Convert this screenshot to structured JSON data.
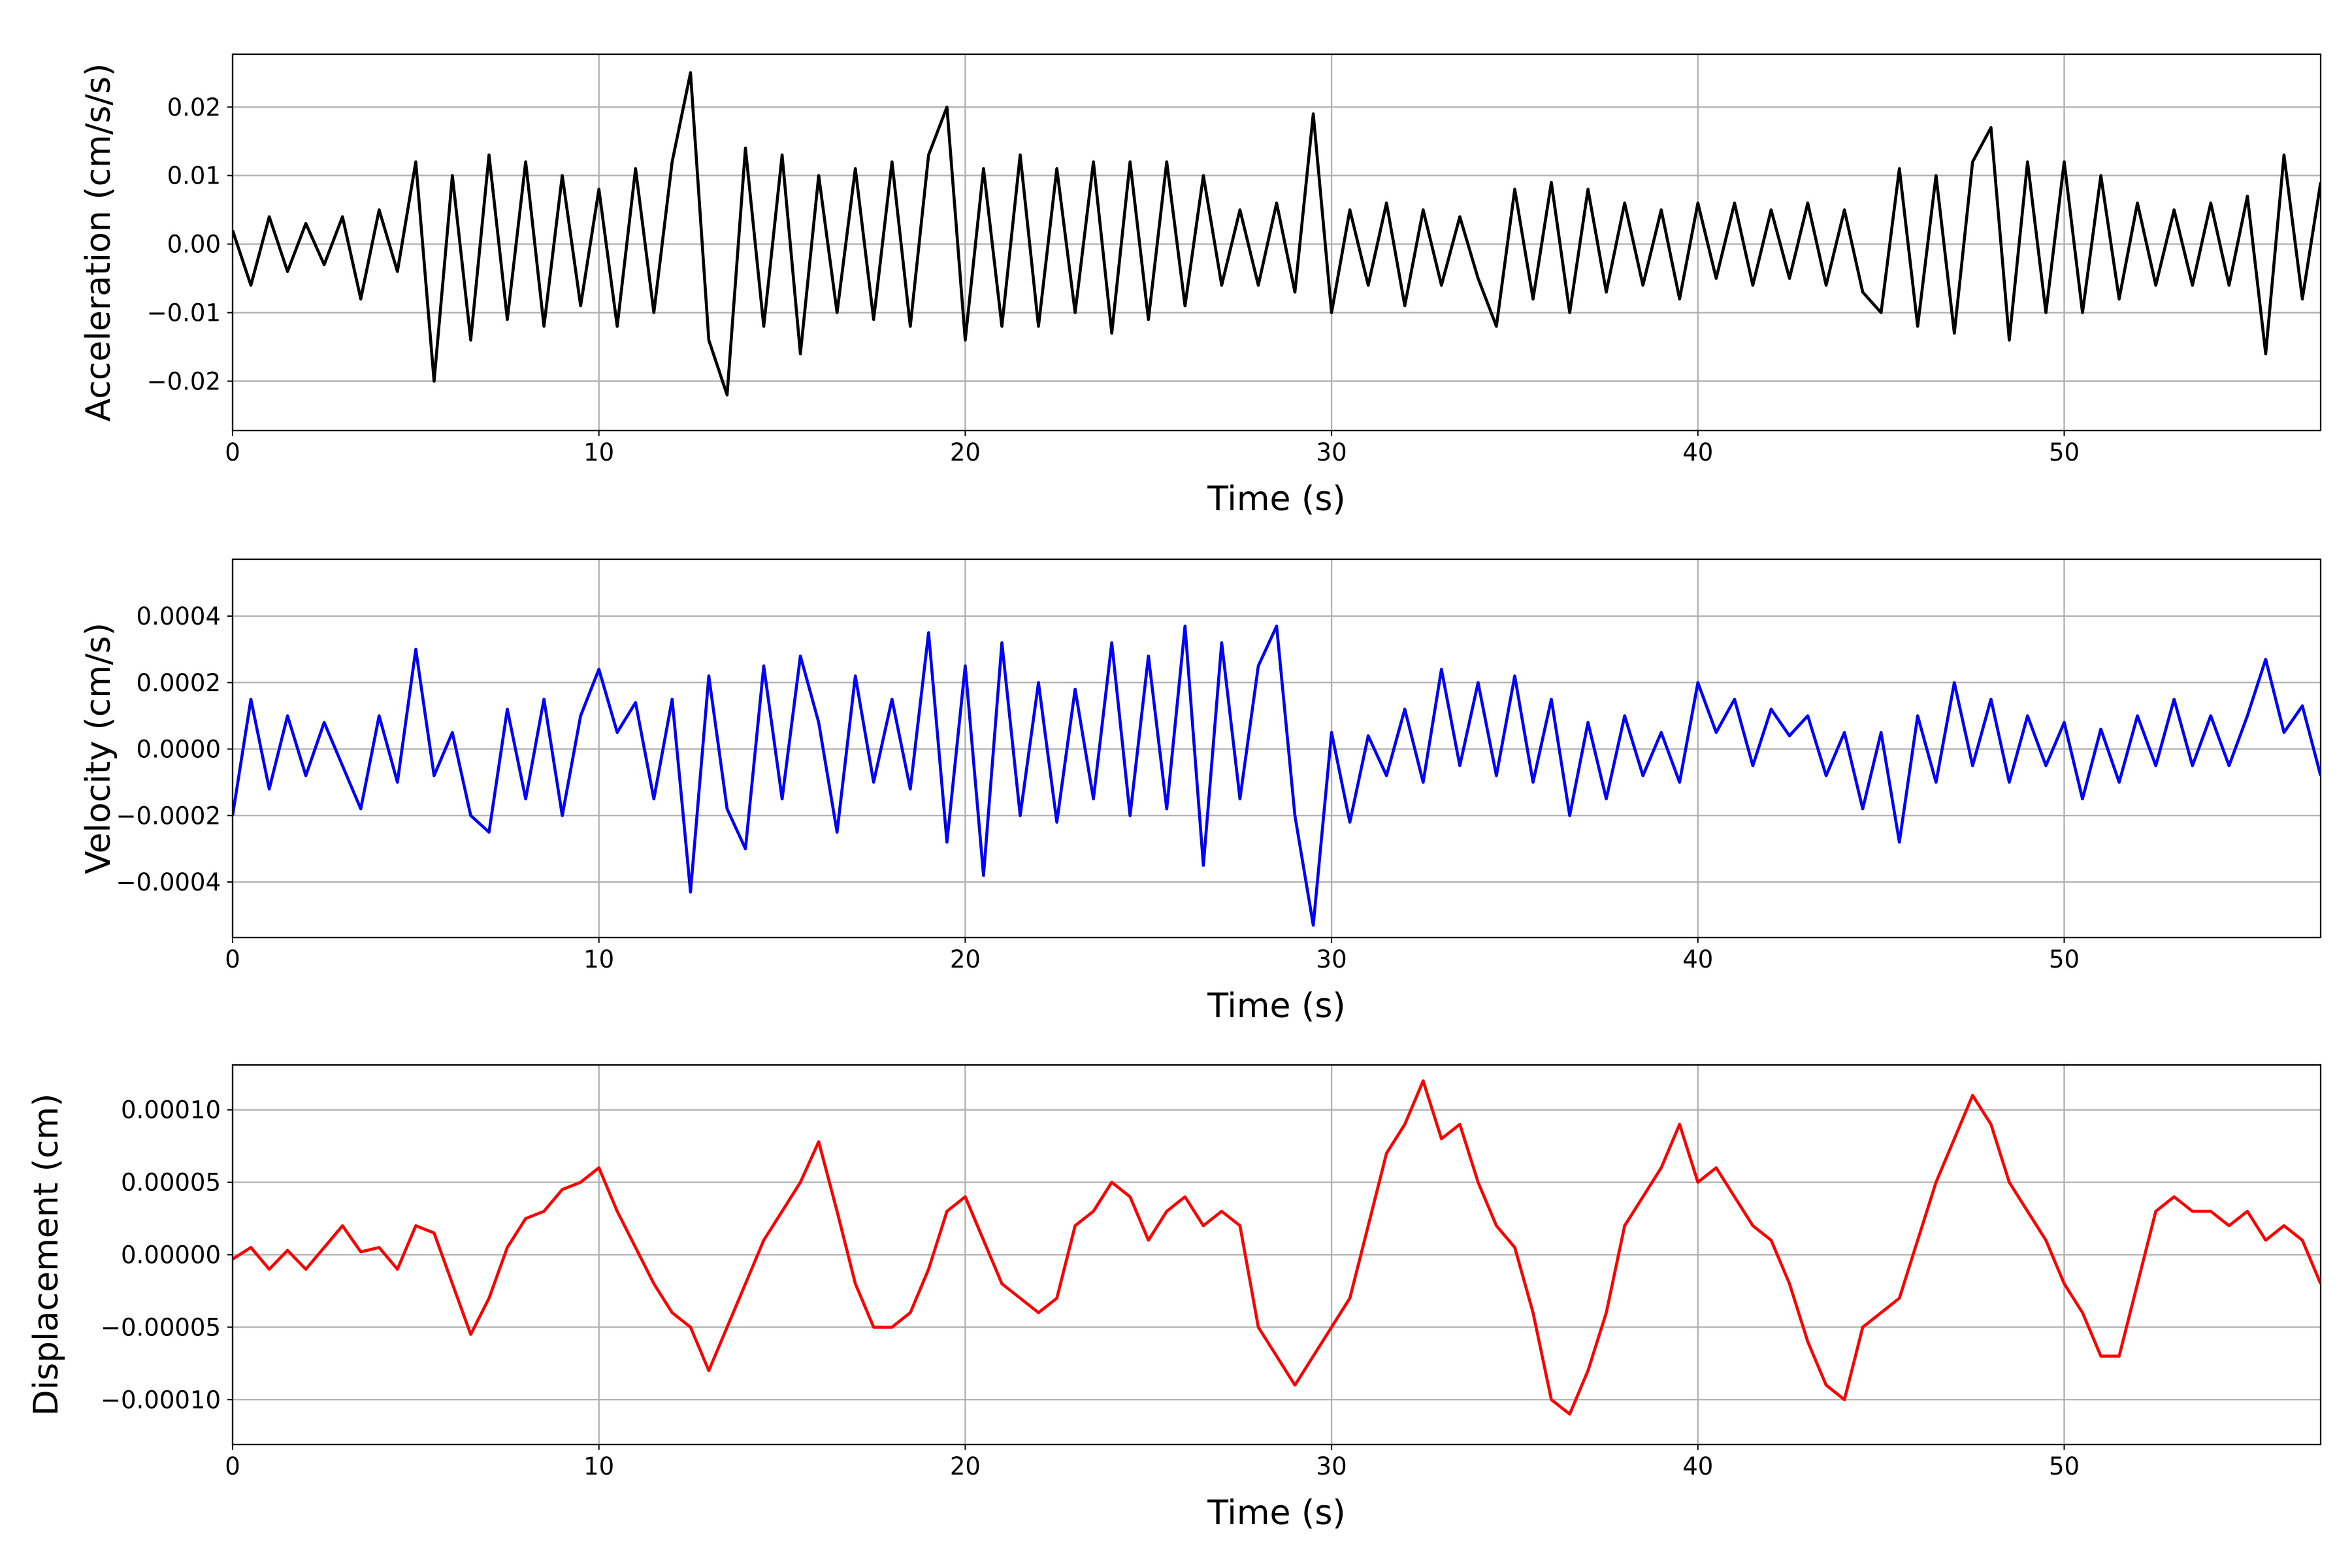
{
  "chart_data": [
    {
      "type": "line",
      "ylabel": "Acceleration (cm/s/s)",
      "xlabel": "Time (s)",
      "color": "#000000",
      "grid": true,
      "xlim": [
        0,
        57
      ],
      "xticks": [
        0,
        10,
        20,
        30,
        40,
        50
      ],
      "ylim": [
        -0.0272,
        0.0277
      ],
      "yticks": [
        0.02,
        0.01,
        {
          "value": 0,
          "label": "0.00"
        },
        {
          "value": -0.01,
          "label": "−0.01"
        },
        {
          "value": -0.02,
          "label": "−0.02"
        }
      ],
      "x": [
        0,
        0.5,
        1,
        1.5,
        2,
        2.5,
        3,
        3.5,
        4,
        4.5,
        5,
        5.5,
        6,
        6.5,
        7,
        7.5,
        8,
        8.5,
        9,
        9.5,
        10,
        10.5,
        11,
        11.5,
        12,
        12.5,
        13,
        13.5,
        14,
        14.5,
        15,
        15.5,
        16,
        16.5,
        17,
        17.5,
        18,
        18.5,
        19,
        19.5,
        20,
        20.5,
        21,
        21.5,
        22,
        22.5,
        23,
        23.5,
        24,
        24.5,
        25,
        25.5,
        26,
        26.5,
        27,
        27.5,
        28,
        28.5,
        29,
        29.5,
        30,
        30.5,
        31,
        31.5,
        32,
        32.5,
        33,
        33.5,
        34,
        34.5,
        35,
        35.5,
        36,
        36.5,
        37,
        37.5,
        38,
        38.5,
        39,
        39.5,
        40,
        40.5,
        41,
        41.5,
        42,
        42.5,
        43,
        43.5,
        44,
        44.5,
        45,
        45.5,
        46,
        46.5,
        47,
        47.5,
        48,
        48.5,
        49,
        49.5,
        50,
        50.5,
        51,
        51.5,
        52,
        52.5,
        53,
        53.5,
        54,
        54.5,
        55,
        55.5,
        56,
        56.5,
        57
      ],
      "values": [
        0.002,
        -0.006,
        0.004,
        -0.004,
        0.003,
        -0.003,
        0.004,
        -0.008,
        0.005,
        -0.004,
        0.012,
        -0.02,
        0.01,
        -0.014,
        0.013,
        -0.011,
        0.012,
        -0.012,
        0.01,
        -0.009,
        0.008,
        -0.012,
        0.011,
        -0.01,
        0.012,
        0.025,
        -0.014,
        -0.022,
        0.014,
        -0.012,
        0.013,
        -0.016,
        0.01,
        -0.01,
        0.011,
        -0.011,
        0.012,
        -0.012,
        0.013,
        0.02,
        -0.014,
        0.011,
        -0.012,
        0.013,
        -0.012,
        0.011,
        -0.01,
        0.012,
        -0.013,
        0.012,
        -0.011,
        0.012,
        -0.009,
        0.01,
        -0.006,
        0.005,
        -0.006,
        0.006,
        -0.007,
        0.019,
        -0.01,
        0.005,
        -0.006,
        0.006,
        -0.009,
        0.005,
        -0.006,
        0.004,
        -0.005,
        -0.012,
        0.008,
        -0.008,
        0.009,
        -0.01,
        0.008,
        -0.007,
        0.006,
        -0.006,
        0.005,
        -0.008,
        0.006,
        -0.005,
        0.006,
        -0.006,
        0.005,
        -0.005,
        0.006,
        -0.006,
        0.005,
        -0.007,
        -0.01,
        0.011,
        -0.012,
        0.01,
        -0.013,
        0.012,
        0.017,
        -0.014,
        0.012,
        -0.01,
        0.012,
        -0.01,
        0.01,
        -0.008,
        0.006,
        -0.006,
        0.005,
        -0.006,
        0.006,
        -0.006,
        0.007,
        -0.016,
        0.013,
        -0.008,
        0.009
      ]
    },
    {
      "type": "line",
      "ylabel": "Velocity (cm/s)",
      "xlabel": "Time (s)",
      "color": "#0000ff",
      "grid": true,
      "xlim": [
        0,
        57
      ],
      "xticks": [
        0,
        10,
        20,
        30,
        40,
        50
      ],
      "ylim": [
        -0.000567,
        0.000571
      ],
      "yticks": [
        0.0004,
        0.0002,
        {
          "value": 0,
          "label": "0.0000"
        },
        {
          "value": -0.0002,
          "label": "−0.0002"
        },
        {
          "value": -0.0004,
          "label": "−0.0004"
        }
      ],
      "x": [
        0,
        0.5,
        1,
        1.5,
        2,
        2.5,
        3,
        3.5,
        4,
        4.5,
        5,
        5.5,
        6,
        6.5,
        7,
        7.5,
        8,
        8.5,
        9,
        9.5,
        10,
        10.5,
        11,
        11.5,
        12,
        12.5,
        13,
        13.5,
        14,
        14.5,
        15,
        15.5,
        16,
        16.5,
        17,
        17.5,
        18,
        18.5,
        19,
        19.5,
        20,
        20.5,
        21,
        21.5,
        22,
        22.5,
        23,
        23.5,
        24,
        24.5,
        25,
        25.5,
        26,
        26.5,
        27,
        27.5,
        28,
        28.5,
        29,
        29.5,
        30,
        30.5,
        31,
        31.5,
        32,
        32.5,
        33,
        33.5,
        34,
        34.5,
        35,
        35.5,
        36,
        36.5,
        37,
        37.5,
        38,
        38.5,
        39,
        39.5,
        40,
        40.5,
        41,
        41.5,
        42,
        42.5,
        43,
        43.5,
        44,
        44.5,
        45,
        45.5,
        46,
        46.5,
        47,
        47.5,
        48,
        48.5,
        49,
        49.5,
        50,
        50.5,
        51,
        51.5,
        52,
        52.5,
        53,
        53.5,
        54,
        54.5,
        55,
        55.5,
        56,
        56.5,
        57
      ],
      "values": [
        -0.0002,
        0.00015,
        -0.00012,
        0.0001,
        -8e-05,
        8e-05,
        -5e-05,
        -0.00018,
        0.0001,
        -0.0001,
        0.0003,
        -8e-05,
        5e-05,
        -0.0002,
        -0.00025,
        0.00012,
        -0.00015,
        0.00015,
        -0.0002,
        0.0001,
        0.00024,
        5e-05,
        0.00014,
        -0.00015,
        0.00015,
        -0.00043,
        0.00022,
        -0.00018,
        -0.0003,
        0.00025,
        -0.00015,
        0.00028,
        8e-05,
        -0.00025,
        0.00022,
        -0.0001,
        0.00015,
        -0.00012,
        0.00035,
        -0.00028,
        0.00025,
        -0.00038,
        0.00032,
        -0.0002,
        0.0002,
        -0.00022,
        0.00018,
        -0.00015,
        0.00032,
        -0.0002,
        0.00028,
        -0.00018,
        0.00037,
        -0.00035,
        0.00032,
        -0.00015,
        0.00025,
        0.00037,
        -0.0002,
        -0.00053,
        5e-05,
        -0.00022,
        4e-05,
        -8e-05,
        0.00012,
        -0.0001,
        0.00024,
        -5e-05,
        0.0002,
        -8e-05,
        0.00022,
        -0.0001,
        0.00015,
        -0.0002,
        8e-05,
        -0.00015,
        0.0001,
        -8e-05,
        5e-05,
        -0.0001,
        0.0002,
        5e-05,
        0.00015,
        -5e-05,
        0.00012,
        4e-05,
        0.0001,
        -8e-05,
        5e-05,
        -0.00018,
        5e-05,
        -0.00028,
        0.0001,
        -0.0001,
        0.0002,
        -5e-05,
        0.00015,
        -0.0001,
        0.0001,
        -5e-05,
        8e-05,
        -0.00015,
        6e-05,
        -0.0001,
        0.0001,
        -5e-05,
        0.00015,
        -5e-05,
        0.0001,
        -5e-05,
        0.0001,
        0.00027,
        5e-05,
        0.00013,
        -8e-05
      ]
    },
    {
      "type": "line",
      "ylabel": "Displacement (cm)",
      "xlabel": "Time (s)",
      "color": "#ff0000",
      "grid": true,
      "xlim": [
        0,
        57
      ],
      "xticks": [
        0,
        10,
        20,
        30,
        40,
        50
      ],
      "ylim": [
        -0.000131,
        0.000131
      ],
      "yticks": [
        {
          "value": 0.0001,
          "label": "0.00010"
        },
        5e-05,
        {
          "value": 0,
          "label": "0.00000"
        },
        {
          "value": -5e-05,
          "label": "−0.00005"
        },
        {
          "value": -0.0001,
          "label": "−0.00010"
        }
      ],
      "x": [
        0,
        0.5,
        1,
        1.5,
        2,
        2.5,
        3,
        3.5,
        4,
        4.5,
        5,
        5.5,
        6,
        6.5,
        7,
        7.5,
        8,
        8.5,
        9,
        9.5,
        10,
        10.5,
        11,
        11.5,
        12,
        12.5,
        13,
        13.5,
        14,
        14.5,
        15,
        15.5,
        16,
        16.5,
        17,
        17.5,
        18,
        18.5,
        19,
        19.5,
        20,
        20.5,
        21,
        21.5,
        22,
        22.5,
        23,
        23.5,
        24,
        24.5,
        25,
        25.5,
        26,
        26.5,
        27,
        27.5,
        28,
        28.5,
        29,
        29.5,
        30,
        30.5,
        31,
        31.5,
        32,
        32.5,
        33,
        33.5,
        34,
        34.5,
        35,
        35.5,
        36,
        36.5,
        37,
        37.5,
        38,
        38.5,
        39,
        39.5,
        40,
        40.5,
        41,
        41.5,
        42,
        42.5,
        43,
        43.5,
        44,
        44.5,
        45,
        45.5,
        46,
        46.5,
        47,
        47.5,
        48,
        48.5,
        49,
        49.5,
        50,
        50.5,
        51,
        51.5,
        52,
        52.5,
        53,
        53.5,
        54,
        54.5,
        55,
        55.5,
        56,
        56.5,
        57
      ],
      "values": [
        -3e-06,
        5e-06,
        -1e-05,
        3e-06,
        -1e-05,
        5e-06,
        2e-05,
        2e-06,
        5e-06,
        -1e-05,
        2e-05,
        1.5e-05,
        -2e-05,
        -5.5e-05,
        -3e-05,
        5e-06,
        2.5e-05,
        3e-05,
        4.5e-05,
        5e-05,
        6e-05,
        3e-05,
        5e-06,
        -2e-05,
        -4e-05,
        -5e-05,
        -8e-05,
        -5e-05,
        -2e-05,
        1e-05,
        3e-05,
        5e-05,
        7.8e-05,
        3e-05,
        -2e-05,
        -5e-05,
        -5e-05,
        -4e-05,
        -1e-05,
        3e-05,
        4e-05,
        1e-05,
        -2e-05,
        -3e-05,
        -4e-05,
        -3e-05,
        2e-05,
        3e-05,
        5e-05,
        4e-05,
        1e-05,
        3e-05,
        4e-05,
        2e-05,
        3e-05,
        2e-05,
        -5e-05,
        -7e-05,
        -9e-05,
        -7e-05,
        -5e-05,
        -3e-05,
        2e-05,
        7e-05,
        9e-05,
        0.00012,
        8e-05,
        9e-05,
        5e-05,
        2e-05,
        5e-06,
        -4e-05,
        -0.0001,
        -0.00011,
        -8e-05,
        -4e-05,
        2e-05,
        4e-05,
        6e-05,
        9e-05,
        5e-05,
        6e-05,
        4e-05,
        2e-05,
        1e-05,
        -2e-05,
        -6e-05,
        -9e-05,
        -0.0001,
        -5e-05,
        -4e-05,
        -3e-05,
        1e-05,
        5e-05,
        8e-05,
        0.00011,
        9e-05,
        5e-05,
        3e-05,
        1e-05,
        -2e-05,
        -4e-05,
        -7e-05,
        -7e-05,
        -2e-05,
        3e-05,
        4e-05,
        3e-05,
        3e-05,
        2e-05,
        3e-05,
        1e-05,
        2e-05,
        1e-05,
        -2e-05
      ]
    }
  ]
}
